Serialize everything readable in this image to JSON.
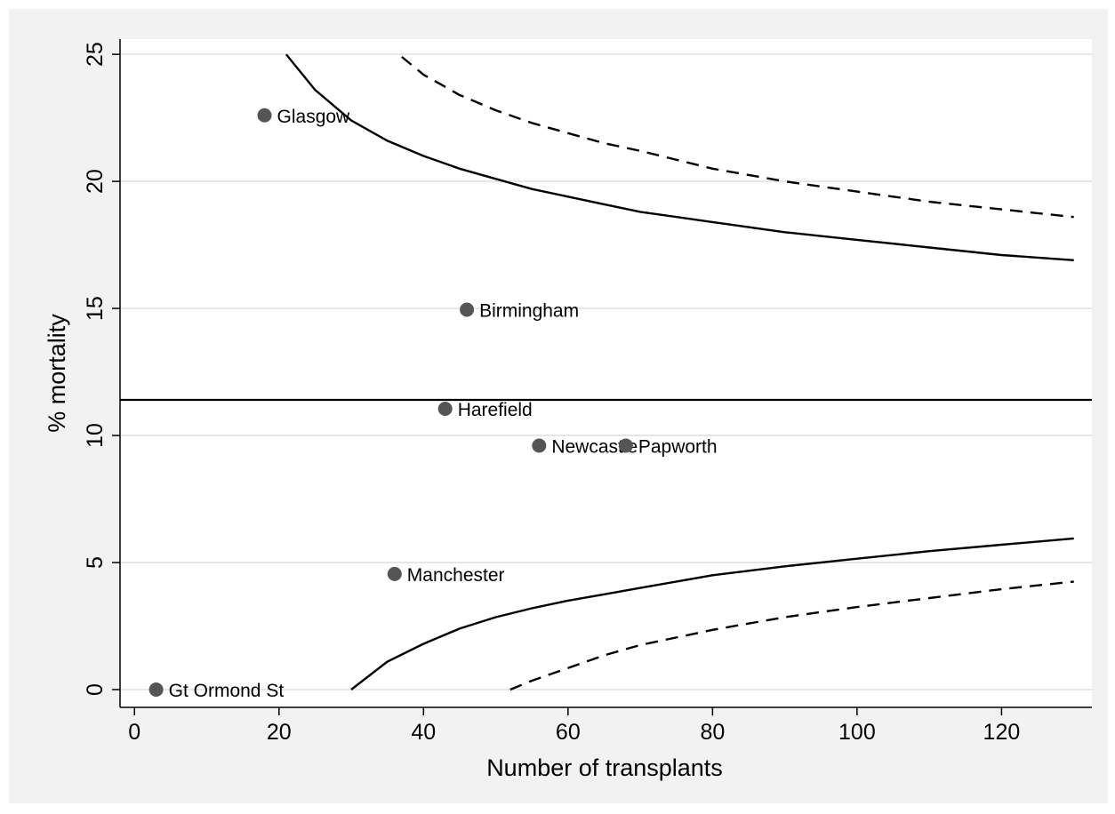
{
  "chart_data": {
    "type": "scatter",
    "title": "",
    "xlabel": "Number of transplants",
    "ylabel": "% mortality",
    "xlim": [
      -2,
      132.5
    ],
    "ylim": [
      -0.7,
      25.6
    ],
    "xticks": [
      0,
      20,
      40,
      60,
      80,
      100,
      120
    ],
    "yticks": [
      0,
      5,
      10,
      15,
      20,
      25
    ],
    "xtick_labels": [
      "0",
      "20",
      "40",
      "60",
      "80",
      "100",
      "120"
    ],
    "ytick_labels": [
      "0",
      "5",
      "10",
      "15",
      "20",
      "25"
    ],
    "grid": "horizontal",
    "legend": "none",
    "colors": {
      "background_outer": "#f2f2f2",
      "plot_area": "#ffffff",
      "grid": "#e6e6e6",
      "marker": "#555555",
      "lines": "#000000"
    },
    "points": [
      {
        "label": "Glasgow",
        "x": 18,
        "y": 22.6
      },
      {
        "label": "Birmingham",
        "x": 46,
        "y": 14.95
      },
      {
        "label": "Harefield",
        "x": 43,
        "y": 11.05
      },
      {
        "label": "Newcastle",
        "x": 56,
        "y": 9.6
      },
      {
        "label": "Papworth",
        "x": 68,
        "y": 9.6
      },
      {
        "label": "Manchester",
        "x": 36,
        "y": 4.55
      },
      {
        "label": "Gt Ormond St",
        "x": 3,
        "y": 0
      }
    ],
    "reference_line": {
      "y": 11.4
    },
    "control_limits": [
      {
        "style": "solid",
        "side": "upper",
        "x": [
          21,
          25,
          30,
          35,
          40,
          45,
          50,
          55,
          60,
          65,
          70,
          80,
          90,
          100,
          110,
          120,
          130
        ],
        "y": [
          25.0,
          23.6,
          22.4,
          21.6,
          21.0,
          20.5,
          20.1,
          19.7,
          19.4,
          19.1,
          18.8,
          18.4,
          18.0,
          17.7,
          17.4,
          17.1,
          16.9
        ]
      },
      {
        "style": "solid",
        "side": "lower",
        "x": [
          30,
          35,
          40,
          45,
          50,
          55,
          60,
          65,
          70,
          80,
          90,
          100,
          110,
          120,
          130
        ],
        "y": [
          0.0,
          1.1,
          1.8,
          2.4,
          2.85,
          3.2,
          3.5,
          3.75,
          4.0,
          4.5,
          4.85,
          5.15,
          5.45,
          5.7,
          5.95
        ]
      },
      {
        "style": "dashed",
        "side": "upper",
        "x": [
          37,
          40,
          45,
          50,
          55,
          60,
          65,
          70,
          80,
          90,
          100,
          110,
          120,
          130
        ],
        "y": [
          24.9,
          24.2,
          23.4,
          22.8,
          22.3,
          21.9,
          21.5,
          21.2,
          20.5,
          20.0,
          19.6,
          19.2,
          18.9,
          18.6
        ]
      },
      {
        "style": "dashed",
        "side": "lower",
        "x": [
          52,
          55,
          60,
          65,
          70,
          80,
          90,
          100,
          110,
          120,
          130
        ],
        "y": [
          0.0,
          0.35,
          0.85,
          1.35,
          1.75,
          2.35,
          2.85,
          3.25,
          3.6,
          3.95,
          4.25
        ]
      }
    ]
  }
}
